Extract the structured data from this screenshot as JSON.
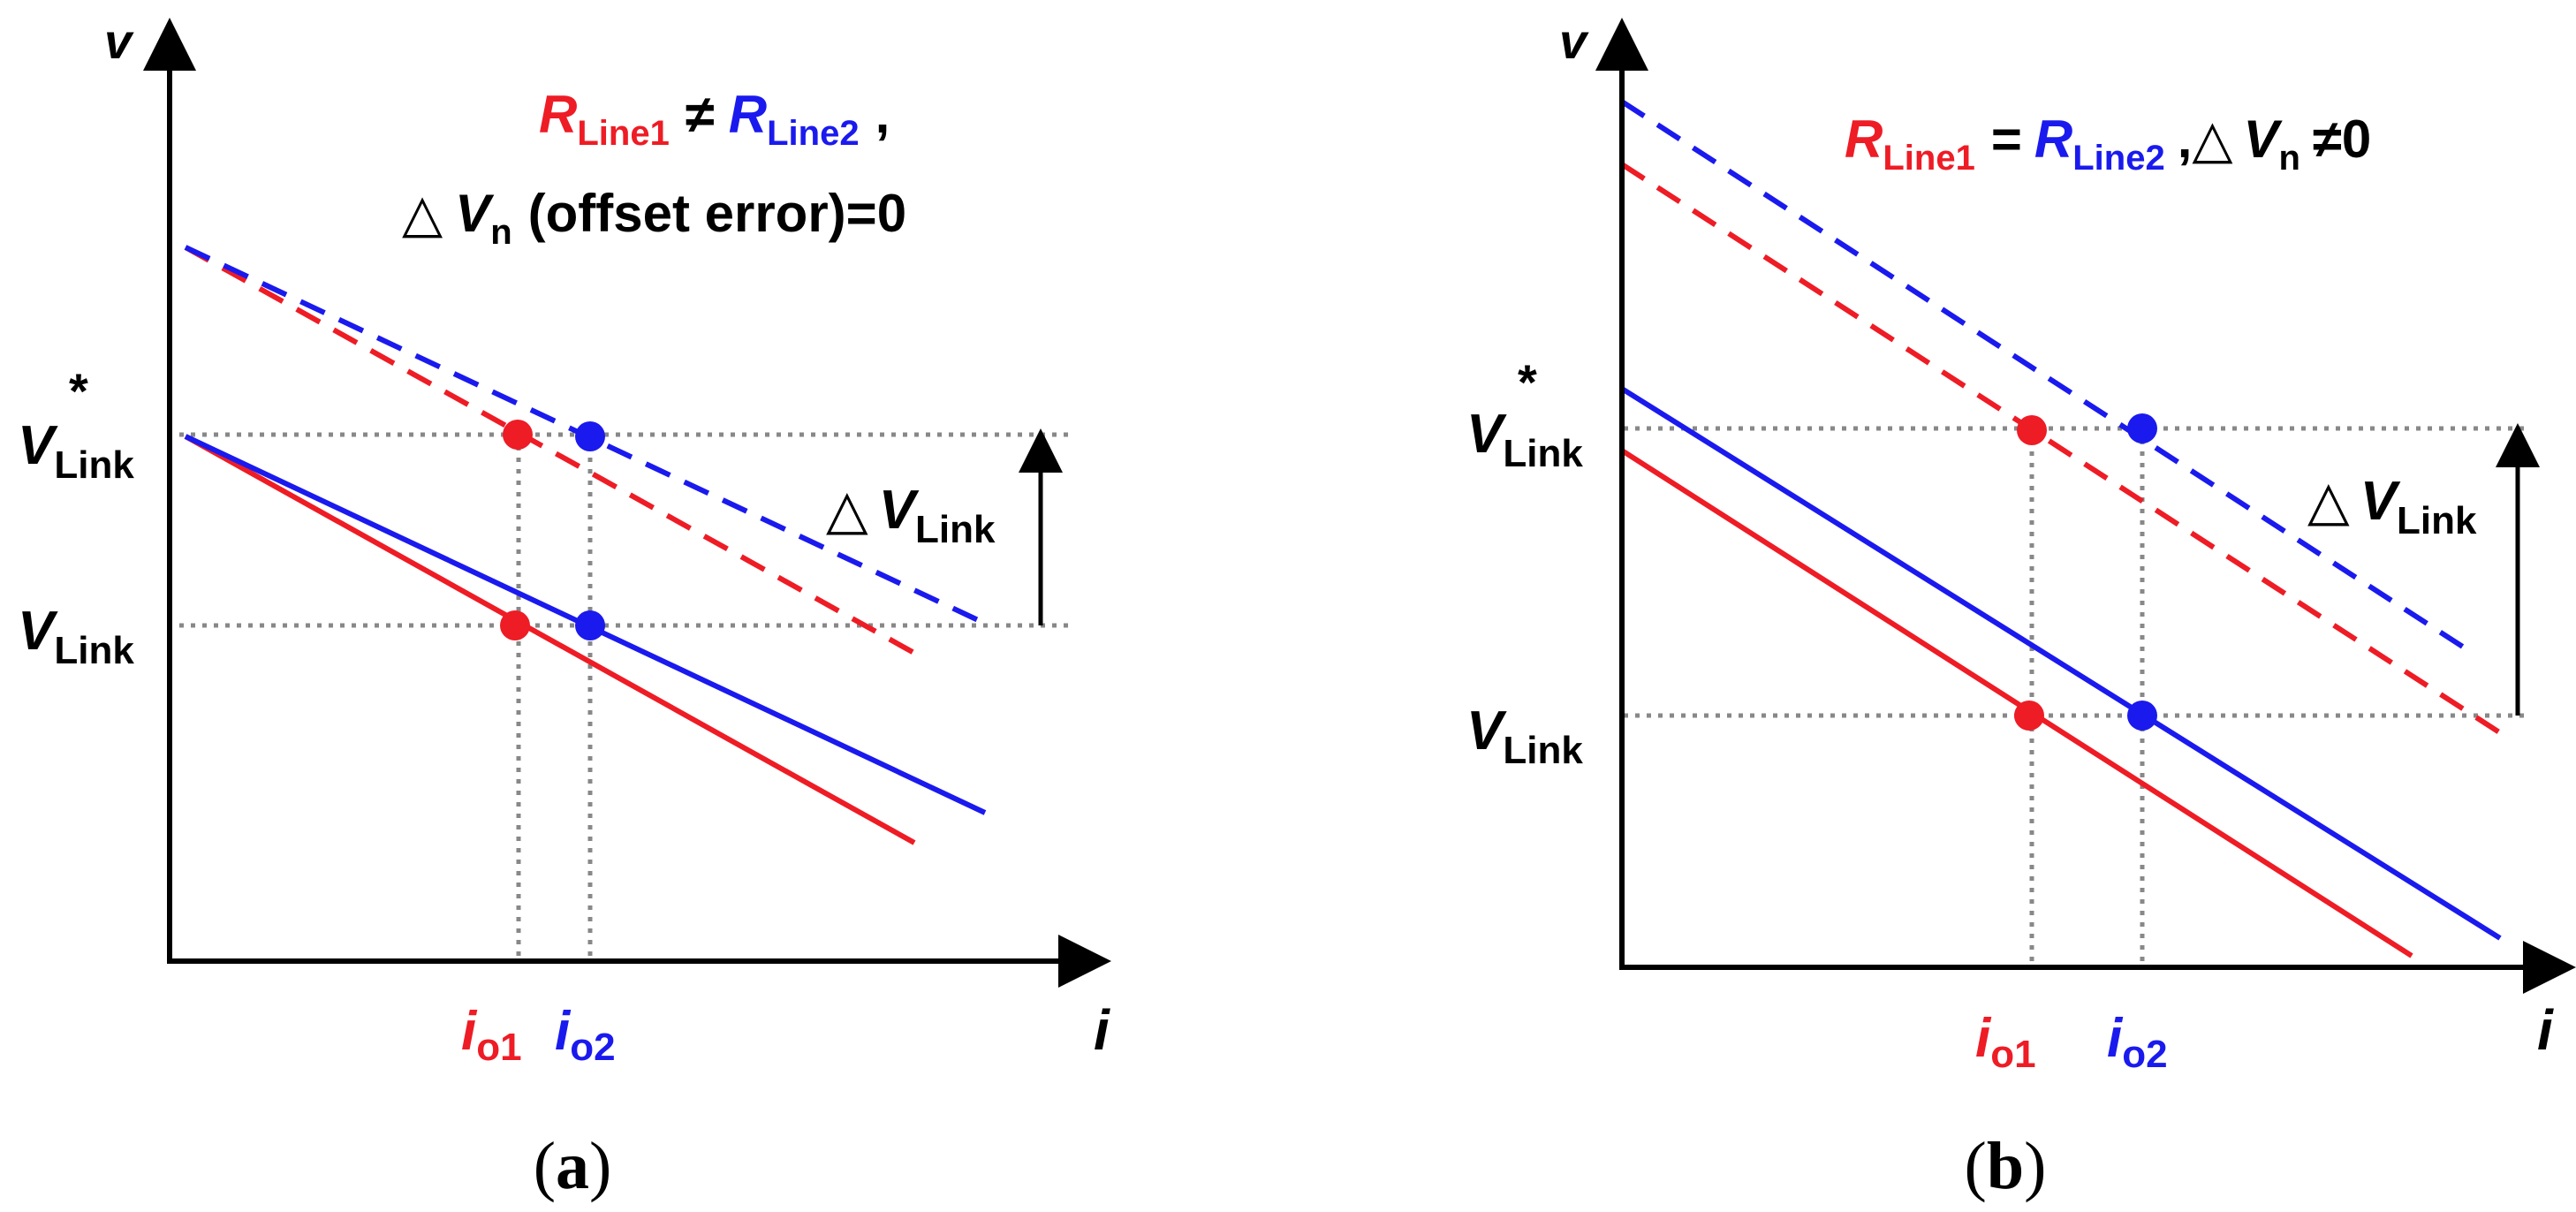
{
  "colors": {
    "line1": "#ee1c25",
    "line2": "#1a1aee",
    "axis": "#000000",
    "guide": "#888888"
  },
  "panels": [
    {
      "id": "a",
      "caption_letter": "a",
      "y_axis_label": "v",
      "x_axis_label": "i",
      "title_line1": {
        "r1_base": "R",
        "r1_sub": "Line1",
        "relation": "≠",
        "r2_base": "R",
        "r2_sub": "Line2",
        "trail": ","
      },
      "title_line2": {
        "delta": "△",
        "v_base": "V",
        "v_sub": "n",
        "text": "(offset error)=0"
      },
      "v_star": {
        "base": "V",
        "sub": "Link",
        "sup": "*"
      },
      "v_link": {
        "base": "V",
        "sub": "Link"
      },
      "delta_label": {
        "delta": "△",
        "base": "V",
        "sub": "Link"
      },
      "io1": {
        "base": "i",
        "sub": "o1"
      },
      "io2": {
        "base": "i",
        "sub": "o2"
      }
    },
    {
      "id": "b",
      "caption_letter": "b",
      "y_axis_label": "v",
      "x_axis_label": "i",
      "title_line1": {
        "r1_base": "R",
        "r1_sub": "Line1",
        "relation": "=",
        "r2_base": "R",
        "r2_sub": "Line2",
        "trail": ",△",
        "v_base": "V",
        "v_sub": "n",
        "text": "≠0"
      },
      "v_star": {
        "base": "V",
        "sub": "Link",
        "sup": "*"
      },
      "v_link": {
        "base": "V",
        "sub": "Link"
      },
      "delta_label": {
        "delta": "△",
        "base": "V",
        "sub": "Link"
      },
      "io1": {
        "base": "i",
        "sub": "o1"
      },
      "io2": {
        "base": "i",
        "sub": "o2"
      }
    }
  ]
}
